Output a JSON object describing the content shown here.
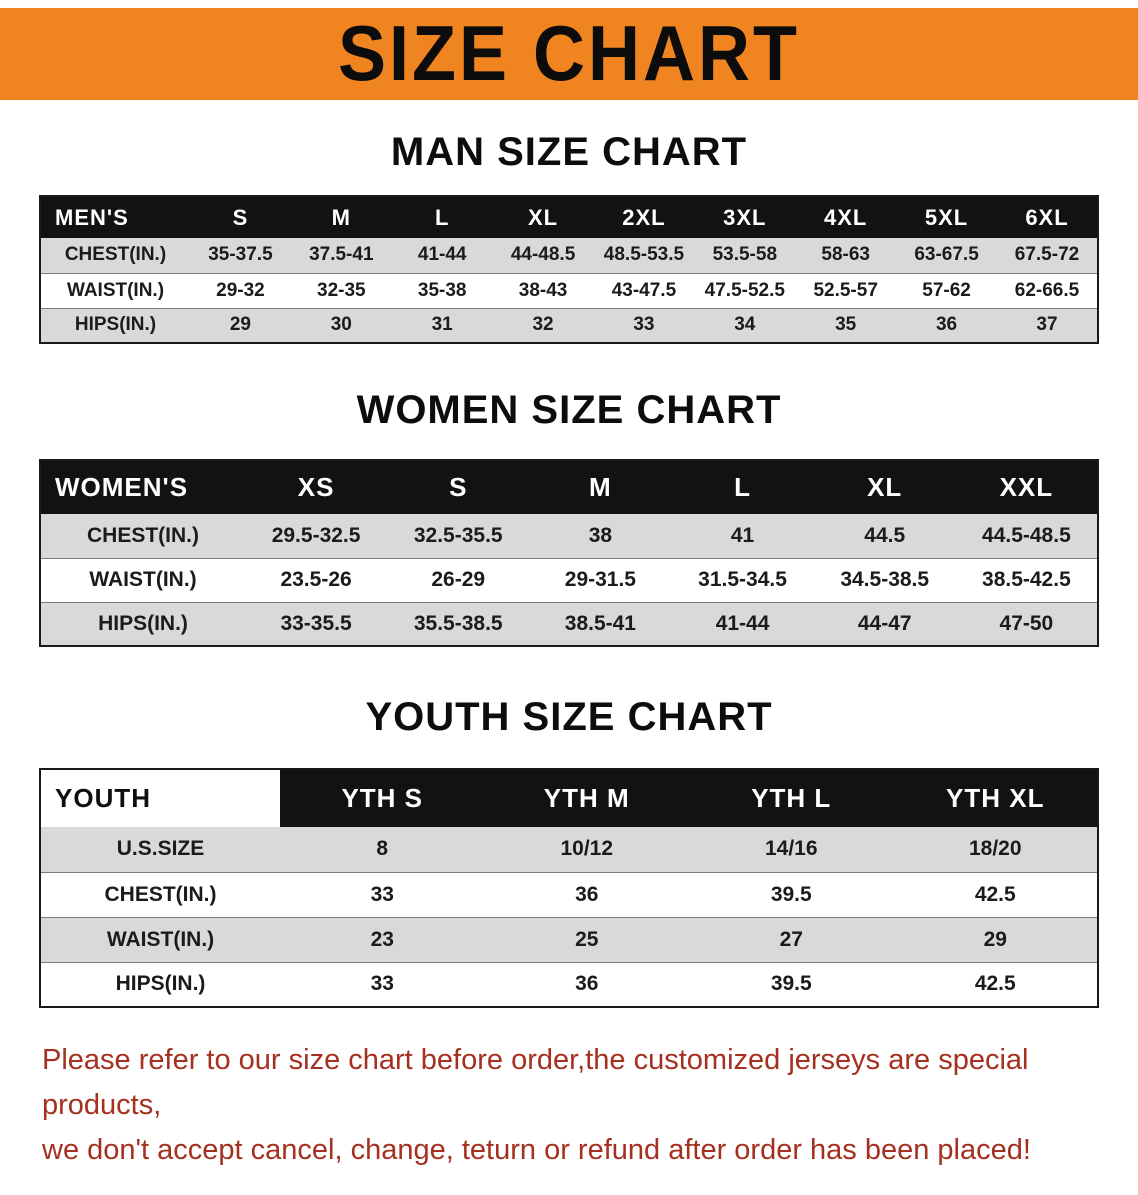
{
  "banner": {
    "title": "SIZE CHART"
  },
  "colors": {
    "banner_bg": "#f08421",
    "header_bg": "#121212",
    "header_fg": "#ffffff",
    "row_alt_bg": "#d9d9d9",
    "note_color": "#a5301f",
    "table_border": "#1a1a1a"
  },
  "men": {
    "heading": "MAN SIZE CHART",
    "table": {
      "header": [
        "MEN'S",
        "S",
        "M",
        "L",
        "XL",
        "2XL",
        "3XL",
        "4XL",
        "5XL",
        "6XL"
      ],
      "rows": [
        [
          "CHEST(IN.)",
          "35-37.5",
          "37.5-41",
          "41-44",
          "44-48.5",
          "48.5-53.5",
          "53.5-58",
          "58-63",
          "63-67.5",
          "67.5-72"
        ],
        [
          "WAIST(IN.)",
          "29-32",
          "32-35",
          "35-38",
          "38-43",
          "43-47.5",
          "47.5-52.5",
          "52.5-57",
          "57-62",
          "62-66.5"
        ],
        [
          "HIPS(IN.)",
          "29",
          "30",
          "31",
          "32",
          "33",
          "34",
          "35",
          "36",
          "37"
        ]
      ]
    }
  },
  "women": {
    "heading": "WOMEN SIZE CHART",
    "table": {
      "header": [
        "WOMEN'S",
        "XS",
        "S",
        "M",
        "L",
        "XL",
        "XXL"
      ],
      "rows": [
        [
          "CHEST(IN.)",
          "29.5-32.5",
          "32.5-35.5",
          "38",
          "41",
          "44.5",
          "44.5-48.5"
        ],
        [
          "WAIST(IN.)",
          "23.5-26",
          "26-29",
          "29-31.5",
          "31.5-34.5",
          "34.5-38.5",
          "38.5-42.5"
        ],
        [
          "HIPS(IN.)",
          "33-35.5",
          "35.5-38.5",
          "38.5-41",
          "41-44",
          "44-47",
          "47-50"
        ]
      ]
    }
  },
  "youth": {
    "heading": "YOUTH SIZE CHART",
    "table": {
      "header": [
        "YOUTH",
        "YTH S",
        "YTH M",
        "YTH L",
        "YTH XL"
      ],
      "rows": [
        [
          "U.S.SIZE",
          "8",
          "10/12",
          "14/16",
          "18/20"
        ],
        [
          "CHEST(IN.)",
          "33",
          "36",
          "39.5",
          "42.5"
        ],
        [
          "WAIST(IN.)",
          "23",
          "25",
          "27",
          "29"
        ],
        [
          "HIPS(IN.)",
          "33",
          "36",
          "39.5",
          "42.5"
        ]
      ]
    }
  },
  "note": {
    "line1": "Please refer to our size chart before order,the customized jerseys are special products,",
    "line2": "we don't accept cancel, change, teturn or refund after order has been placed!"
  }
}
